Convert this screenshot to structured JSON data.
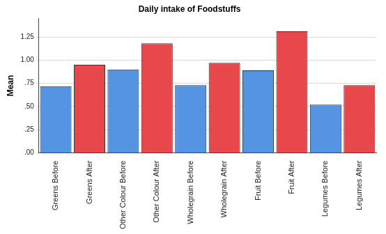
{
  "chart_data": {
    "type": "bar",
    "title": "Daily intake of Foodstuffs",
    "y_label": "Mean",
    "categories": [
      "Greens Before",
      "Greens After",
      "Other Colour Before",
      "Other Colour After",
      "Wholegrain Before",
      "Wholegrain After",
      "Fruit Before",
      "Fruit After",
      "Legumes Before",
      "Legumes After"
    ],
    "values": [
      0.72,
      0.95,
      0.9,
      1.18,
      0.73,
      0.97,
      0.89,
      1.31,
      0.52,
      0.73
    ],
    "colors": [
      "#5593e3",
      "#e8474c",
      "#5593e3",
      "#e8474c",
      "#5593e3",
      "#e8474c",
      "#5593e3",
      "#e8474c",
      "#5593e3",
      "#e8474c"
    ],
    "ylim": [
      0,
      1.45
    ],
    "yticks": [
      {
        "value": 0,
        "label": ".00"
      },
      {
        "value": 0.25,
        "label": ".25"
      },
      {
        "value": 0.5,
        "label": ".50"
      },
      {
        "value": 0.75,
        "label": ".75"
      },
      {
        "value": 1,
        "label": "1.00"
      },
      {
        "value": 1.25,
        "label": "1.25"
      }
    ],
    "grid": true
  }
}
